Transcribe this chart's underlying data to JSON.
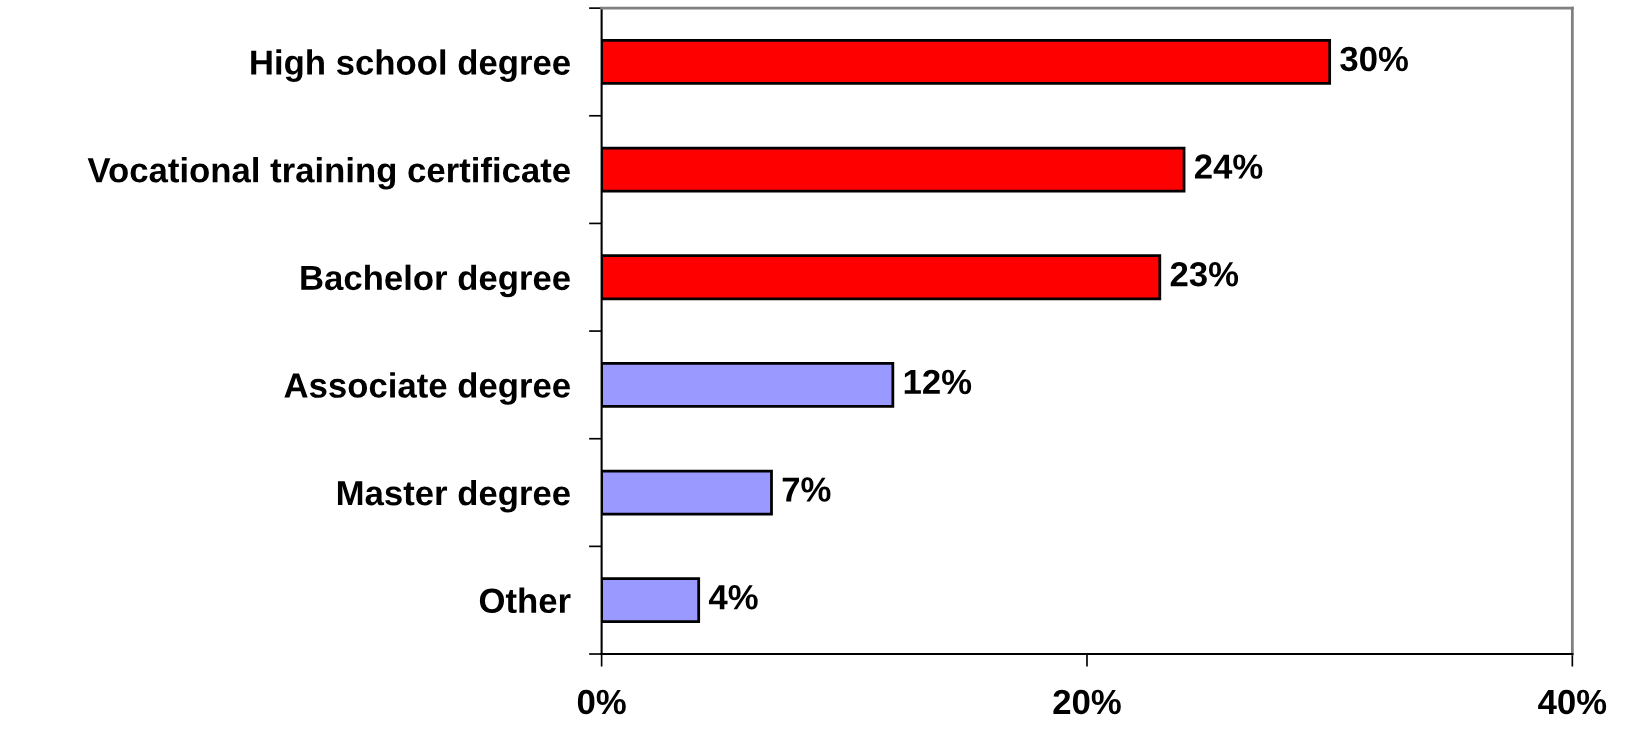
{
  "chart_data": {
    "type": "bar",
    "orientation": "horizontal",
    "categories": [
      "High school degree",
      "Vocational training certificate",
      "Bachelor degree",
      "Associate degree",
      "Master degree",
      "Other"
    ],
    "values": [
      30,
      24,
      23,
      12,
      7,
      4
    ],
    "colors": [
      "#ff0000",
      "#ff0000",
      "#ff0000",
      "#9999ff",
      "#9999ff",
      "#9999ff"
    ],
    "value_labels": [
      "30%",
      "24%",
      "23%",
      "12%",
      "7%",
      "4%"
    ],
    "xlim": [
      0,
      40
    ],
    "xticks": [
      {
        "value": 0,
        "label": "0%"
      },
      {
        "value": 20,
        "label": "20%"
      },
      {
        "value": 40,
        "label": "40%"
      }
    ],
    "grid": false
  }
}
